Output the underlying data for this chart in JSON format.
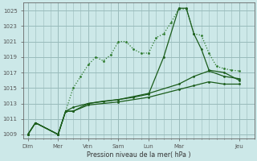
{
  "background_color": "#cce8e8",
  "grid_color": "#99bbbb",
  "line_color_dark": "#1a5c1a",
  "line_color_dotted": "#2d7a2d",
  "xtick_labels": [
    "Dim",
    "Mer",
    "Ven",
    "Sam",
    "Lun",
    "Mar",
    "Jeu"
  ],
  "xtick_positions": [
    0,
    2,
    4,
    6,
    8,
    10,
    14
  ],
  "ytick_labels": [
    "1009",
    "1011",
    "1013",
    "1015",
    "1017",
    "1019",
    "1021",
    "1023",
    "1025"
  ],
  "ytick_values": [
    1009,
    1011,
    1013,
    1015,
    1017,
    1019,
    1021,
    1023,
    1025
  ],
  "ylim": [
    1008.5,
    1026
  ],
  "xlim": [
    -0.3,
    15
  ],
  "xlabel": "Pression niveau de la mer( hPa )",
  "line_dotted": {
    "x": [
      0,
      0.5,
      2,
      2.5,
      3,
      3.5,
      4,
      4.5,
      5,
      5.5,
      6,
      6.5,
      7,
      7.5,
      8,
      8.5,
      9,
      9.5,
      10,
      10.5,
      11,
      11.5,
      12,
      12.5,
      13,
      13.5,
      14
    ],
    "y": [
      1009,
      1010.5,
      1009,
      1012,
      1015,
      1016.5,
      1018,
      1019,
      1018.5,
      1019.3,
      1021,
      1021,
      1020,
      1019.5,
      1019.5,
      1021.5,
      1022,
      1023.5,
      1025.2,
      1025.2,
      1022,
      1021.8,
      1019.5,
      1017.8,
      1017.5,
      1017.3,
      1017.2
    ]
  },
  "line_solid1": {
    "x": [
      0,
      0.5,
      2,
      2.5,
      3,
      4,
      5,
      6,
      7,
      8,
      9,
      10,
      10.5,
      11,
      11.5,
      12,
      13,
      14
    ],
    "y": [
      1009,
      1010.5,
      1009,
      1012,
      1012.5,
      1013,
      1013.3,
      1013.5,
      1013.8,
      1014.2,
      1019,
      1025.3,
      1025.3,
      1022,
      1020,
      1017.3,
      1017.0,
      1016
    ]
  },
  "line_solid2": {
    "x": [
      0,
      0.5,
      2,
      2.5,
      3,
      4,
      6,
      8,
      10,
      11,
      12,
      13,
      14
    ],
    "y": [
      1009,
      1010.5,
      1009,
      1012,
      1012,
      1013,
      1013.5,
      1014.3,
      1015.5,
      1016.5,
      1017.2,
      1016.5,
      1016.2
    ]
  },
  "line_solid3": {
    "x": [
      0,
      0.5,
      2,
      2.5,
      3,
      4,
      6,
      8,
      10,
      11,
      12,
      13,
      14
    ],
    "y": [
      1009,
      1010.5,
      1009,
      1012,
      1012,
      1012.8,
      1013.2,
      1013.8,
      1014.8,
      1015.3,
      1015.8,
      1015.5,
      1015.5
    ]
  }
}
